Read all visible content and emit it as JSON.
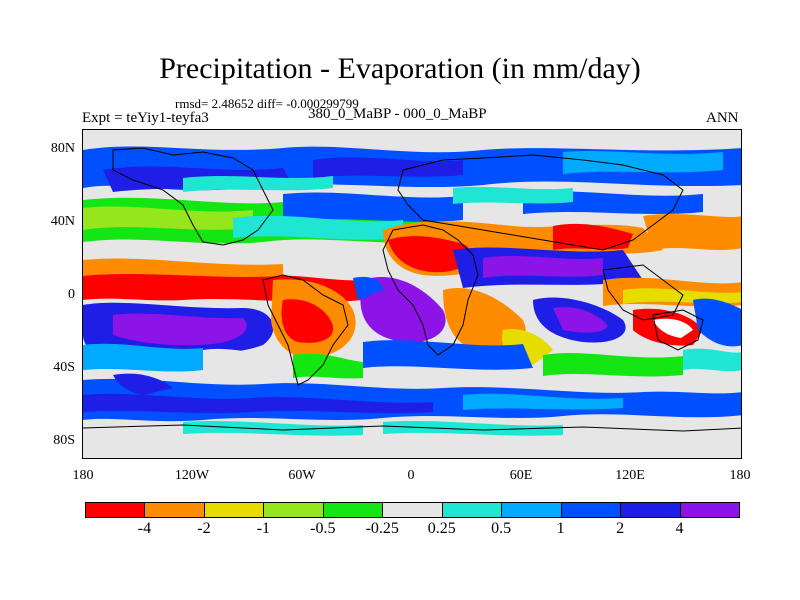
{
  "title": "Precipitation - Evaporation (in mm/day)",
  "stats": "rmsd= 2.48652 diff= -0.000299799",
  "expt": "Expt = teYiy1-teyfa3",
  "period": "380_0_MaBP - 000_0_MaBP",
  "season": "ANN",
  "y_axis": {
    "ticks": [
      {
        "label": "80N",
        "lat": 80
      },
      {
        "label": "40N",
        "lat": 40
      },
      {
        "label": "0",
        "lat": 0
      },
      {
        "label": "40S",
        "lat": -40
      },
      {
        "label": "80S",
        "lat": -80
      }
    ],
    "range": [
      -90,
      90
    ]
  },
  "x_axis": {
    "ticks": [
      {
        "label": "180",
        "lon": -180
      },
      {
        "label": "120W",
        "lon": -120
      },
      {
        "label": "60W",
        "lon": -60
      },
      {
        "label": "0",
        "lon": 0
      },
      {
        "label": "60E",
        "lon": 60
      },
      {
        "label": "120E",
        "lon": 120
      },
      {
        "label": "180",
        "lon": 180
      }
    ],
    "range": [
      -180,
      180
    ]
  },
  "colorbar": {
    "colors": [
      "#ff0000",
      "#ff8c00",
      "#e6dc00",
      "#96e61e",
      "#14e614",
      "#e6e6e6",
      "#1ee6d2",
      "#00aaff",
      "#0050ff",
      "#1e1ee6",
      "#8c14e6"
    ],
    "labels": [
      "-4",
      "-2",
      "-1",
      "-0.5",
      "-0.25",
      "0.25",
      "0.5",
      "1",
      "2",
      "4"
    ]
  }
}
